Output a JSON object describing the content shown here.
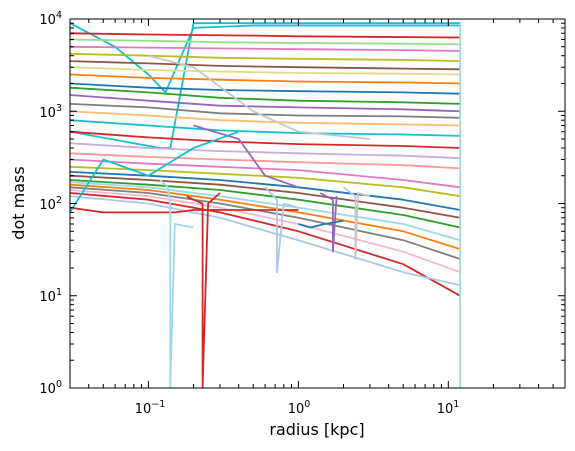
{
  "chart_data": {
    "type": "line",
    "xlabel": "radius [kpc]",
    "ylabel": "dot mass",
    "xscale": "log",
    "yscale": "log",
    "xlim": [
      0.03,
      60
    ],
    "ylim": [
      1,
      10000
    ],
    "grid": false,
    "legend": "none",
    "x_ticks": [
      {
        "base": "10",
        "exp": "−1",
        "value": 0.1
      },
      {
        "base": "10",
        "exp": "0",
        "value": 1
      },
      {
        "base": "10",
        "exp": "1",
        "value": 10
      }
    ],
    "y_ticks": [
      {
        "base": "10",
        "exp": "0",
        "value": 1
      },
      {
        "base": "10",
        "exp": "1",
        "value": 10
      },
      {
        "base": "10",
        "exp": "2",
        "value": 100
      },
      {
        "base": "10",
        "exp": "3",
        "value": 1000
      },
      {
        "base": "10",
        "exp": "4",
        "value": 10000
      }
    ],
    "palette": [
      "#1f77b4",
      "#ff7f0e",
      "#2ca02c",
      "#d62728",
      "#9467bd",
      "#8c564b",
      "#e377c2",
      "#7f7f7f",
      "#bcbd22",
      "#17becf",
      "#aec7e8",
      "#ffbb78",
      "#98df8a",
      "#ff9896",
      "#c5b0d5",
      "#c49c94",
      "#f7b6d2",
      "#c7c7c7",
      "#dbdb8d",
      "#9edae5"
    ],
    "series": [
      {
        "color": "#17becf",
        "x": [
          0.03,
          0.06,
          0.1,
          0.13,
          0.2,
          0.5,
          1,
          12
        ],
        "y": [
          9000,
          5000,
          2500,
          1600,
          8000,
          8500,
          8500,
          8500
        ]
      },
      {
        "color": "#17becf",
        "x": [
          0.03,
          0.08,
          0.12,
          0.14,
          0.2,
          1,
          12
        ],
        "y": [
          600,
          450,
          400,
          400,
          9000,
          9000,
          9000
        ]
      },
      {
        "color": "#d62728",
        "x": [
          0.03,
          0.1,
          0.2,
          0.5,
          1,
          12
        ],
        "y": [
          7000,
          6800,
          6700,
          6600,
          6500,
          6300
        ]
      },
      {
        "color": "#98df8a",
        "x": [
          0.03,
          0.1,
          0.3,
          1,
          5,
          12
        ],
        "y": [
          6000,
          5800,
          5600,
          5500,
          5400,
          5300
        ]
      },
      {
        "color": "#e377c2",
        "x": [
          0.03,
          0.1,
          0.3,
          1,
          5,
          12
        ],
        "y": [
          5000,
          4900,
          4800,
          4700,
          4600,
          4500
        ]
      },
      {
        "color": "#bcbd22",
        "x": [
          0.03,
          0.1,
          0.3,
          1,
          5,
          12
        ],
        "y": [
          4200,
          4000,
          3800,
          3700,
          3600,
          3500
        ]
      },
      {
        "color": "#8c564b",
        "x": [
          0.03,
          0.1,
          0.3,
          1,
          5,
          12
        ],
        "y": [
          3500,
          3300,
          3100,
          3000,
          2900,
          2850
        ]
      },
      {
        "color": "#dbdb8d",
        "x": [
          0.03,
          0.1,
          0.3,
          1,
          5,
          12
        ],
        "y": [
          3000,
          2800,
          2700,
          2600,
          2550,
          2500
        ]
      },
      {
        "color": "#ff7f0e",
        "x": [
          0.03,
          0.1,
          0.3,
          1,
          5,
          12
        ],
        "y": [
          2500,
          2300,
          2200,
          2100,
          2050,
          2000
        ]
      },
      {
        "color": "#1f77b4",
        "x": [
          0.03,
          0.1,
          0.3,
          1,
          5,
          12
        ],
        "y": [
          2000,
          1800,
          1700,
          1650,
          1600,
          1550
        ]
      },
      {
        "color": "#2ca02c",
        "x": [
          0.03,
          0.1,
          0.3,
          1,
          5,
          12
        ],
        "y": [
          1800,
          1600,
          1400,
          1300,
          1250,
          1200
        ]
      },
      {
        "color": "#9467bd",
        "x": [
          0.03,
          0.1,
          0.3,
          1,
          5,
          12
        ],
        "y": [
          1500,
          1300,
          1150,
          1100,
          1050,
          1000
        ]
      },
      {
        "color": "#7f7f7f",
        "x": [
          0.03,
          0.1,
          0.3,
          1,
          5,
          12
        ],
        "y": [
          1200,
          1100,
          950,
          900,
          880,
          850
        ]
      },
      {
        "color": "#ffbb78",
        "x": [
          0.03,
          0.1,
          0.3,
          1,
          5,
          12
        ],
        "y": [
          1000,
          900,
          800,
          750,
          720,
          700
        ]
      },
      {
        "color": "#17becf",
        "x": [
          0.03,
          0.1,
          0.3,
          1,
          5,
          12
        ],
        "y": [
          800,
          700,
          620,
          580,
          560,
          540
        ]
      },
      {
        "color": "#d62728",
        "x": [
          0.03,
          0.1,
          0.3,
          1,
          5,
          12
        ],
        "y": [
          600,
          520,
          470,
          440,
          420,
          400
        ]
      },
      {
        "color": "#c5b0d5",
        "x": [
          0.03,
          0.1,
          0.3,
          1,
          5,
          12
        ],
        "y": [
          450,
          400,
          370,
          350,
          330,
          310
        ]
      },
      {
        "color": "#ff9896",
        "x": [
          0.03,
          0.1,
          0.3,
          1,
          5,
          12
        ],
        "y": [
          350,
          320,
          300,
          280,
          260,
          240
        ]
      },
      {
        "color": "#e377c2",
        "x": [
          0.03,
          0.1,
          0.3,
          1,
          5,
          12
        ],
        "y": [
          300,
          270,
          250,
          230,
          180,
          150
        ]
      },
      {
        "color": "#bcbd22",
        "x": [
          0.03,
          0.1,
          0.3,
          1,
          5,
          12
        ],
        "y": [
          250,
          230,
          210,
          190,
          150,
          120
        ]
      },
      {
        "color": "#1f77b4",
        "x": [
          0.03,
          0.1,
          0.3,
          1,
          5,
          12
        ],
        "y": [
          220,
          200,
          180,
          150,
          110,
          85
        ]
      },
      {
        "color": "#8c564b",
        "x": [
          0.03,
          0.1,
          0.3,
          1,
          5,
          12
        ],
        "y": [
          200,
          180,
          160,
          130,
          90,
          70
        ]
      },
      {
        "color": "#2ca02c",
        "x": [
          0.03,
          0.1,
          0.3,
          1,
          5,
          12
        ],
        "y": [
          180,
          160,
          140,
          110,
          75,
          55
        ]
      },
      {
        "color": "#9edae5",
        "x": [
          0.03,
          0.1,
          0.3,
          1,
          5,
          12
        ],
        "y": [
          170,
          150,
          120,
          90,
          60,
          40
        ]
      },
      {
        "color": "#ff7f0e",
        "x": [
          0.03,
          0.1,
          0.3,
          1,
          5,
          12
        ],
        "y": [
          160,
          140,
          110,
          80,
          50,
          32
        ]
      },
      {
        "color": "#7f7f7f",
        "x": [
          0.03,
          0.1,
          0.3,
          1,
          5,
          12
        ],
        "y": [
          150,
          130,
          100,
          70,
          40,
          25
        ]
      },
      {
        "color": "#f7b6d2",
        "x": [
          0.03,
          0.1,
          0.3,
          1,
          5,
          12
        ],
        "y": [
          140,
          120,
          90,
          60,
          30,
          18
        ]
      },
      {
        "color": "#d62728",
        "x": [
          0.03,
          0.1,
          0.3,
          1,
          5,
          12
        ],
        "y": [
          130,
          110,
          80,
          50,
          22,
          10
        ]
      },
      {
        "color": "#aec7e8",
        "x": [
          0.03,
          0.1,
          0.3,
          1,
          5,
          12
        ],
        "y": [
          120,
          100,
          70,
          40,
          18,
          13
        ]
      },
      {
        "color": "#d62728",
        "x": [
          0.03,
          0.05,
          0.1,
          0.15,
          0.2,
          0.5,
          1
        ],
        "y": [
          90,
          80,
          80,
          80,
          85,
          85,
          85
        ]
      },
      {
        "color": "#d62728",
        "x": [
          0.18,
          0.2,
          0.23,
          0.23,
          0.25,
          0.3
        ],
        "y": [
          120,
          110,
          100,
          1,
          100,
          130
        ]
      },
      {
        "color": "#9edae5",
        "x": [
          0.12,
          0.135,
          0.14,
          0.14,
          0.15,
          0.2
        ],
        "y": [
          180,
          150,
          100,
          1,
          60,
          55
        ]
      },
      {
        "color": "#9edae5",
        "x": [
          12,
          12,
          12
        ],
        "y": [
          9000,
          500,
          1
        ]
      },
      {
        "color": "#c7c7c7",
        "x": [
          2,
          2.4,
          2.4,
          2.5,
          3
        ],
        "y": [
          150,
          120,
          25,
          130,
          120
        ]
      },
      {
        "color": "#9467bd",
        "x": [
          1.4,
          1.7,
          1.7,
          1.8
        ],
        "y": [
          130,
          110,
          30,
          120
        ]
      },
      {
        "color": "#aec7e8",
        "x": [
          0.6,
          0.72,
          0.72,
          0.8,
          1
        ],
        "y": [
          150,
          110,
          18,
          100,
          90
        ]
      },
      {
        "color": "#1f77b4",
        "x": [
          1,
          1.2,
          1.5,
          2
        ],
        "y": [
          60,
          55,
          60,
          65
        ]
      },
      {
        "color": "#c7c7c7",
        "x": [
          0.1,
          0.2,
          0.5,
          1,
          3
        ],
        "y": [
          4000,
          3000,
          1000,
          600,
          500
        ]
      },
      {
        "color": "#9467bd",
        "x": [
          0.2,
          0.4,
          0.6,
          1
        ],
        "y": [
          700,
          500,
          200,
          150
        ]
      },
      {
        "color": "#17becf",
        "x": [
          0.03,
          0.05,
          0.1,
          0.2,
          0.4
        ],
        "y": [
          80,
          300,
          200,
          400,
          600
        ]
      }
    ]
  }
}
